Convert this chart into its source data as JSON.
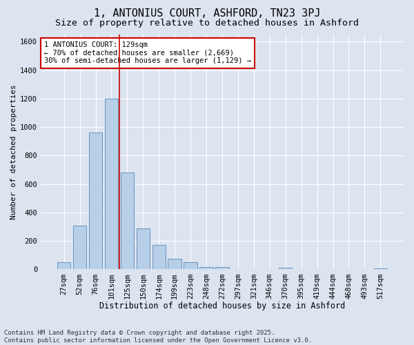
{
  "title": "1, ANTONIUS COURT, ASHFORD, TN23 3PJ",
  "subtitle": "Size of property relative to detached houses in Ashford",
  "xlabel": "Distribution of detached houses by size in Ashford",
  "ylabel": "Number of detached properties",
  "categories": [
    "27sqm",
    "52sqm",
    "76sqm",
    "101sqm",
    "125sqm",
    "150sqm",
    "174sqm",
    "199sqm",
    "223sqm",
    "248sqm",
    "272sqm",
    "297sqm",
    "321sqm",
    "346sqm",
    "370sqm",
    "395sqm",
    "419sqm",
    "444sqm",
    "468sqm",
    "493sqm",
    "517sqm"
  ],
  "values": [
    50,
    310,
    960,
    1200,
    680,
    290,
    170,
    75,
    50,
    15,
    15,
    0,
    0,
    0,
    10,
    0,
    0,
    0,
    0,
    0,
    5
  ],
  "bar_color": "#b8cfe8",
  "bar_edge_color": "#5588bb",
  "background_color": "#dce4f0",
  "grid_color": "#ffffff",
  "annotation_text": "1 ANTONIUS COURT: 129sqm\n← 70% of detached houses are smaller (2,669)\n30% of semi-detached houses are larger (1,129) →",
  "annotation_box_color": "#ffffff",
  "annotation_box_edge": "#cc0000",
  "vline_color": "#cc0000",
  "vline_x": 3.5,
  "ylim": [
    0,
    1650
  ],
  "yticks": [
    0,
    200,
    400,
    600,
    800,
    1000,
    1200,
    1400,
    1600
  ],
  "footnote": "Contains HM Land Registry data © Crown copyright and database right 2025.\nContains public sector information licensed under the Open Government Licence v3.0.",
  "title_fontsize": 11,
  "subtitle_fontsize": 9.5,
  "xlabel_fontsize": 8.5,
  "ylabel_fontsize": 8,
  "tick_fontsize": 7.5,
  "annotation_fontsize": 7.5,
  "footnote_fontsize": 6.5
}
